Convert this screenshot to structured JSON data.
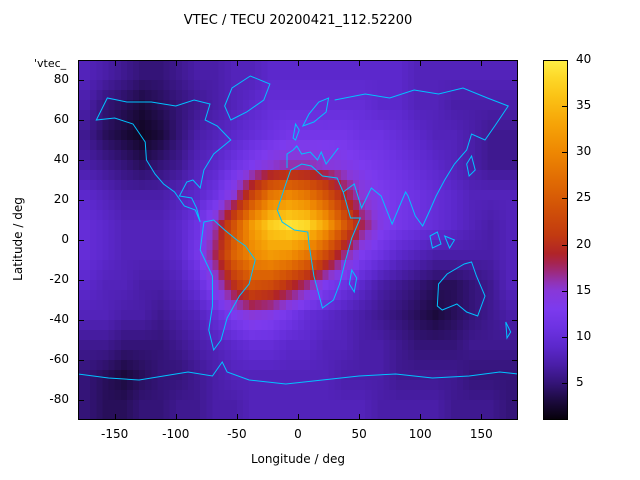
{
  "title": "VTEC / TECU 20200421_112.52200",
  "key_label": "'vtec_",
  "axes": {
    "x": {
      "label": "Longitude / deg",
      "min": -180,
      "max": 180,
      "ticks": [
        -150,
        -100,
        -50,
        0,
        50,
        100,
        150
      ]
    },
    "y": {
      "label": "Latitude / deg",
      "min": -90,
      "max": 90,
      "ticks": [
        -80,
        -60,
        -40,
        -20,
        0,
        20,
        40,
        60,
        80
      ]
    }
  },
  "colorbar": {
    "min": 1,
    "max": 40,
    "ticks": [
      5,
      10,
      15,
      20,
      25,
      30,
      35,
      40
    ]
  },
  "palette": [
    [
      1,
      "#050008"
    ],
    [
      3,
      "#1b0a3c"
    ],
    [
      5,
      "#341478"
    ],
    [
      7,
      "#4a1ea8"
    ],
    [
      9,
      "#5c28cc"
    ],
    [
      11,
      "#6d32e2"
    ],
    [
      13,
      "#7c3aee"
    ],
    [
      15,
      "#8838d8"
    ],
    [
      16,
      "#9232b0"
    ],
    [
      17,
      "#9c2a80"
    ],
    [
      18,
      "#a62450"
    ],
    [
      19,
      "#b02428"
    ],
    [
      21,
      "#c23a10"
    ],
    [
      24,
      "#d25207"
    ],
    [
      27,
      "#e16c03"
    ],
    [
      30,
      "#ee8702"
    ],
    [
      33,
      "#f6a307"
    ],
    [
      36,
      "#fbc215"
    ],
    [
      38,
      "#fdd727"
    ],
    [
      40,
      "#ffef45"
    ]
  ],
  "colors": {
    "coastline": "#00c3ff",
    "text": "#000000",
    "frame": "#000000",
    "background": "#ffffff"
  },
  "chart_data": {
    "type": "heatmap",
    "title": "VTEC / TECU 20200421_112.52200",
    "xlabel": "Longitude / deg",
    "ylabel": "Latitude / deg",
    "units": "TECU",
    "xlim": [
      -180,
      180
    ],
    "ylim": [
      -90,
      90
    ],
    "value_range": [
      1,
      40
    ],
    "lon_centers": [
      -172.5,
      -157.5,
      -142.5,
      -127.5,
      -112.5,
      -97.5,
      -82.5,
      -67.5,
      -52.5,
      -37.5,
      -22.5,
      -7.5,
      7.5,
      22.5,
      37.5,
      52.5,
      67.5,
      82.5,
      97.5,
      112.5,
      127.5,
      142.5,
      157.5,
      172.5
    ],
    "lat_centers": [
      82.5,
      67.5,
      52.5,
      37.5,
      22.5,
      7.5,
      -7.5,
      -22.5,
      -37.5,
      -52.5,
      -67.5,
      -82.5
    ],
    "values": [
      [
        8,
        7,
        6,
        5,
        5,
        6,
        7,
        7,
        8,
        8,
        9,
        9,
        9,
        9,
        9,
        9,
        9,
        9,
        8,
        8,
        8,
        8,
        8,
        8
      ],
      [
        7,
        5,
        4,
        3,
        4,
        5,
        6,
        7,
        8,
        9,
        10,
        10,
        10,
        10,
        10,
        10,
        9,
        9,
        8,
        8,
        7,
        7,
        7,
        7
      ],
      [
        6,
        4,
        3,
        2,
        3,
        5,
        7,
        8,
        9,
        10,
        11,
        12,
        12,
        12,
        12,
        11,
        11,
        10,
        9,
        8,
        8,
        7,
        6,
        6
      ],
      [
        7,
        6,
        5,
        4,
        5,
        6,
        8,
        9,
        11,
        13,
        15,
        16,
        16,
        15,
        14,
        13,
        12,
        11,
        10,
        9,
        8,
        7,
        6,
        6
      ],
      [
        9,
        8,
        7,
        7,
        7,
        8,
        9,
        11,
        15,
        22,
        28,
        30,
        28,
        24,
        19,
        15,
        13,
        12,
        11,
        10,
        9,
        8,
        8,
        8
      ],
      [
        10,
        9,
        8,
        8,
        8,
        9,
        11,
        16,
        24,
        32,
        37,
        39,
        38,
        33,
        25,
        18,
        14,
        12,
        11,
        10,
        9,
        8,
        7,
        8
      ],
      [
        10,
        9,
        8,
        8,
        8,
        9,
        12,
        18,
        26,
        30,
        32,
        31,
        28,
        23,
        17,
        13,
        11,
        9,
        8,
        7,
        7,
        7,
        7,
        8
      ],
      [
        9,
        8,
        8,
        7,
        7,
        8,
        10,
        14,
        20,
        24,
        23,
        20,
        17,
        13,
        11,
        9,
        7,
        6,
        5,
        4,
        4,
        5,
        6,
        8
      ],
      [
        8,
        8,
        7,
        7,
        6,
        7,
        8,
        10,
        13,
        15,
        14,
        12,
        10,
        9,
        8,
        7,
        6,
        5,
        4,
        3,
        4,
        5,
        6,
        7
      ],
      [
        6,
        6,
        5,
        5,
        5,
        6,
        7,
        8,
        9,
        10,
        10,
        9,
        9,
        8,
        8,
        7,
        7,
        6,
        5,
        5,
        5,
        6,
        6,
        6
      ],
      [
        5,
        4,
        3,
        4,
        5,
        5,
        6,
        7,
        8,
        8,
        8,
        8,
        8,
        8,
        7,
        7,
        7,
        6,
        6,
        6,
        6,
        5,
        5,
        5
      ],
      [
        5,
        4,
        4,
        5,
        5,
        6,
        6,
        7,
        7,
        8,
        8,
        8,
        8,
        8,
        8,
        8,
        7,
        7,
        7,
        7,
        6,
        6,
        6,
        5
      ]
    ]
  }
}
